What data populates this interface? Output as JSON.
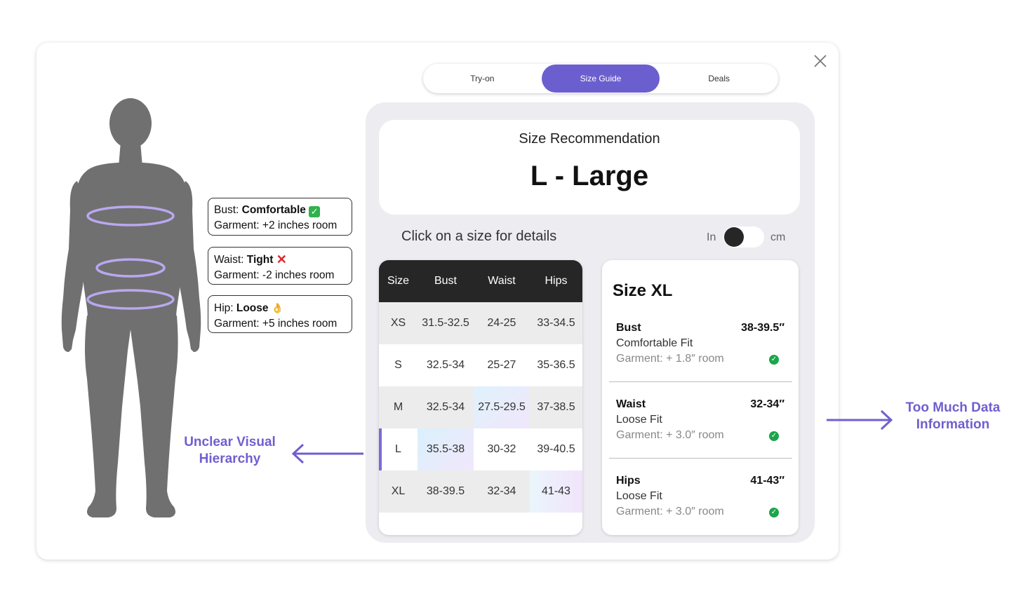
{
  "tabs": [
    {
      "label": "Try-on",
      "active": false
    },
    {
      "label": "Size Guide",
      "active": true
    },
    {
      "label": "Deals",
      "active": false
    }
  ],
  "callouts": {
    "bust": {
      "prefix": "Bust: ",
      "fit": "Comfortable",
      "emoji": "check-mark-icon",
      "room": "Garment: +2 inches room"
    },
    "waist": {
      "prefix": "Waist: ",
      "fit": "Tight",
      "emoji": "cross-mark-icon",
      "room": "Garment: -2 inches room"
    },
    "hip": {
      "prefix": "Hip: ",
      "fit": "Loose",
      "emoji": "ok-hand-icon",
      "room": "Garment: +5 inches room"
    }
  },
  "recommendation": {
    "label": "Size Recommendation",
    "size": "L - Large"
  },
  "hint": "Click on a size for details",
  "units": {
    "left": "In",
    "right": "cm",
    "selected": "In"
  },
  "table": {
    "headers": [
      "Size",
      "Bust",
      "Waist",
      "Hips"
    ],
    "rows": [
      [
        "XS",
        "31.5-32.5",
        "24-25",
        "33-34.5"
      ],
      [
        "S",
        "32.5-34",
        "25-27",
        "35-36.5"
      ],
      [
        "M",
        "32.5-34",
        "27.5-29.5",
        "37-38.5"
      ],
      [
        "L",
        "35.5-38",
        "30-32",
        "39-40.5"
      ],
      [
        "XL",
        "38-39.5",
        "32-34",
        "41-43"
      ]
    ],
    "selected_row": "L"
  },
  "detail": {
    "title": "Size XL",
    "measures": [
      {
        "name": "Bust",
        "value": "38-39.5″",
        "fit": "Comfortable Fit",
        "room": "Garment: + 1.8″ room"
      },
      {
        "name": "Waist",
        "value": "32-34″",
        "fit": "Loose Fit",
        "room": "Garment: + 3.0″ room"
      },
      {
        "name": "Hips",
        "value": "41-43″",
        "fit": "Loose Fit",
        "room": "Garment: + 3.0″ room"
      }
    ]
  },
  "annotations": {
    "left": {
      "line1": "Unclear Visual",
      "line2": "Hierarchy"
    },
    "right": {
      "line1": "Too Much Data",
      "line2": "Information"
    }
  },
  "colors": {
    "accent": "#6b5fcf",
    "annotation": "#6f5fd0",
    "figure": "#707070",
    "ring": "#b9a8f0",
    "check": "#1aa64a"
  }
}
